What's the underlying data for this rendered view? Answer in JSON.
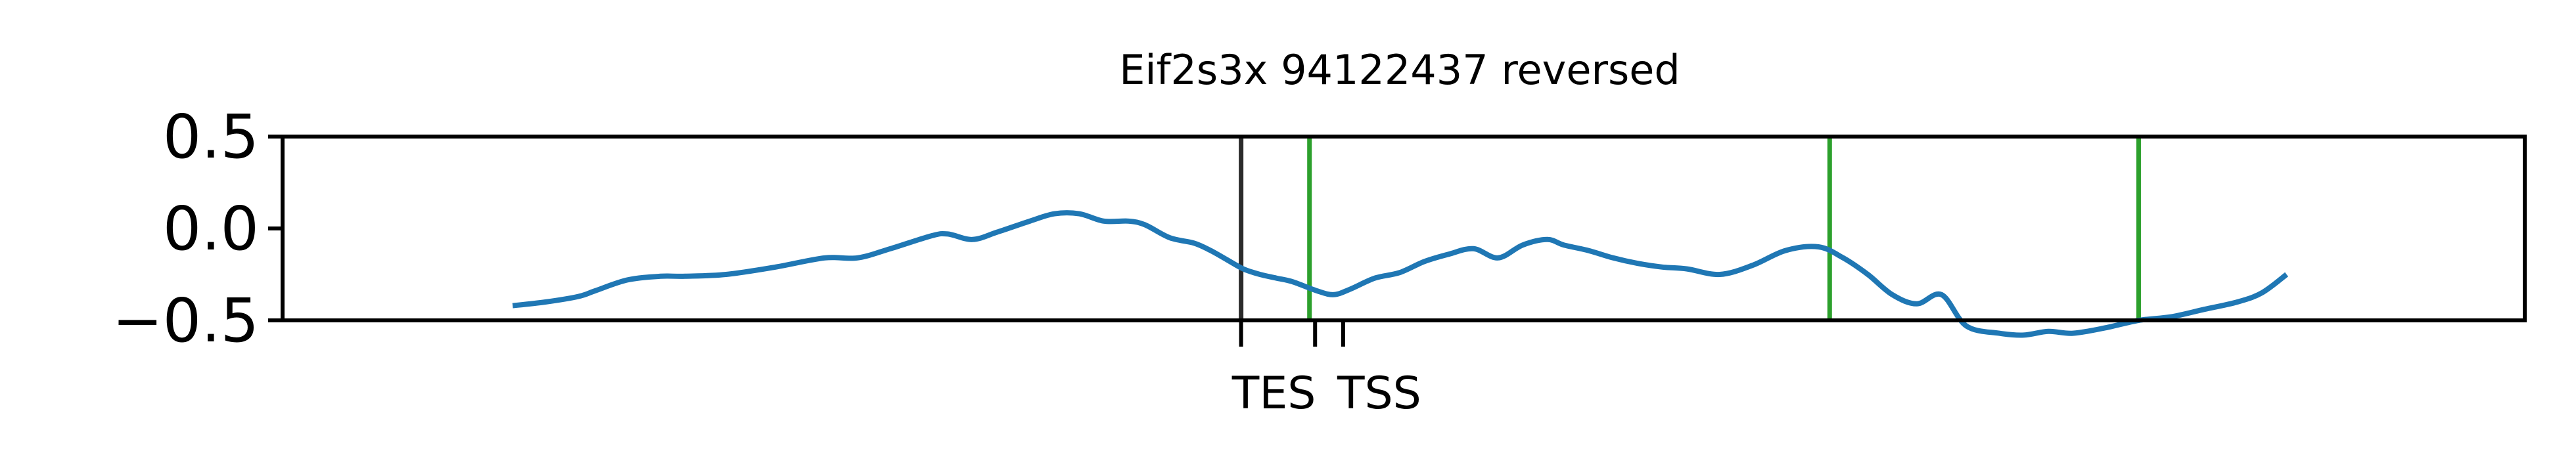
{
  "chart_data": {
    "type": "line",
    "title": "Eif2s3x 94122437 reversed",
    "xlabel": "",
    "ylabel": "",
    "xlim": [
      0,
      1
    ],
    "ylim": [
      -0.5,
      0.5
    ],
    "y_ticks": [
      {
        "value": 0.5,
        "label": "0.5"
      },
      {
        "value": 0.0,
        "label": "0.0"
      },
      {
        "value": -0.5,
        "label": "−0.5"
      }
    ],
    "x_ticks": [
      {
        "value": 0.4275,
        "label": "TES"
      },
      {
        "value": 0.4605,
        "label": ""
      },
      {
        "value": 0.473,
        "label": "TSS"
      }
    ],
    "grid": false,
    "legend": "none",
    "series": [
      {
        "color": "#1f77b4",
        "x": [
          0.1026,
          0.1172,
          0.1319,
          0.1392,
          0.1538,
          0.1685,
          0.1795,
          0.1978,
          0.2198,
          0.2418,
          0.2564,
          0.2711,
          0.2894,
          0.2967,
          0.3077,
          0.3187,
          0.3333,
          0.3443,
          0.3553,
          0.3663,
          0.3773,
          0.3846,
          0.3956,
          0.4066,
          0.4139,
          0.4212,
          0.4285,
          0.4359,
          0.4432,
          0.4505,
          0.4615,
          0.4689,
          0.4762,
          0.4872,
          0.4982,
          0.5092,
          0.5201,
          0.5311,
          0.5421,
          0.5531,
          0.5641,
          0.5714,
          0.5824,
          0.5934,
          0.6044,
          0.6154,
          0.6264,
          0.641,
          0.6557,
          0.6703,
          0.685,
          0.696,
          0.707,
          0.7179,
          0.7289,
          0.7399,
          0.7509,
          0.7656,
          0.7766,
          0.7875,
          0.7985,
          0.8132,
          0.8278,
          0.8425,
          0.8571,
          0.8718,
          0.8828,
          0.8938
        ],
        "y": [
          -0.42,
          -0.4,
          -0.37,
          -0.34,
          -0.28,
          -0.26,
          -0.26,
          -0.25,
          -0.21,
          -0.16,
          -0.16,
          -0.11,
          -0.04,
          -0.03,
          -0.06,
          -0.02,
          0.04,
          0.08,
          0.08,
          0.04,
          0.04,
          0.02,
          -0.05,
          -0.08,
          -0.12,
          -0.17,
          -0.22,
          -0.25,
          -0.27,
          -0.29,
          -0.34,
          -0.36,
          -0.33,
          -0.27,
          -0.24,
          -0.18,
          -0.14,
          -0.11,
          -0.16,
          -0.09,
          -0.06,
          -0.09,
          -0.12,
          -0.16,
          -0.19,
          -0.21,
          -0.22,
          -0.25,
          -0.2,
          -0.12,
          -0.1,
          -0.16,
          -0.25,
          -0.36,
          -0.41,
          -0.36,
          -0.53,
          -0.57,
          -0.58,
          -0.56,
          -0.57,
          -0.54,
          -0.5,
          -0.48,
          -0.44,
          -0.4,
          -0.35,
          -0.25
        ]
      }
    ],
    "vlines": [
      {
        "x": 0.4275,
        "color": "#2b2b2b"
      },
      {
        "x": 0.458,
        "color": "#2ca02c"
      },
      {
        "x": 0.69,
        "color": "#2ca02c"
      },
      {
        "x": 0.8278,
        "color": "#2ca02c"
      }
    ]
  }
}
